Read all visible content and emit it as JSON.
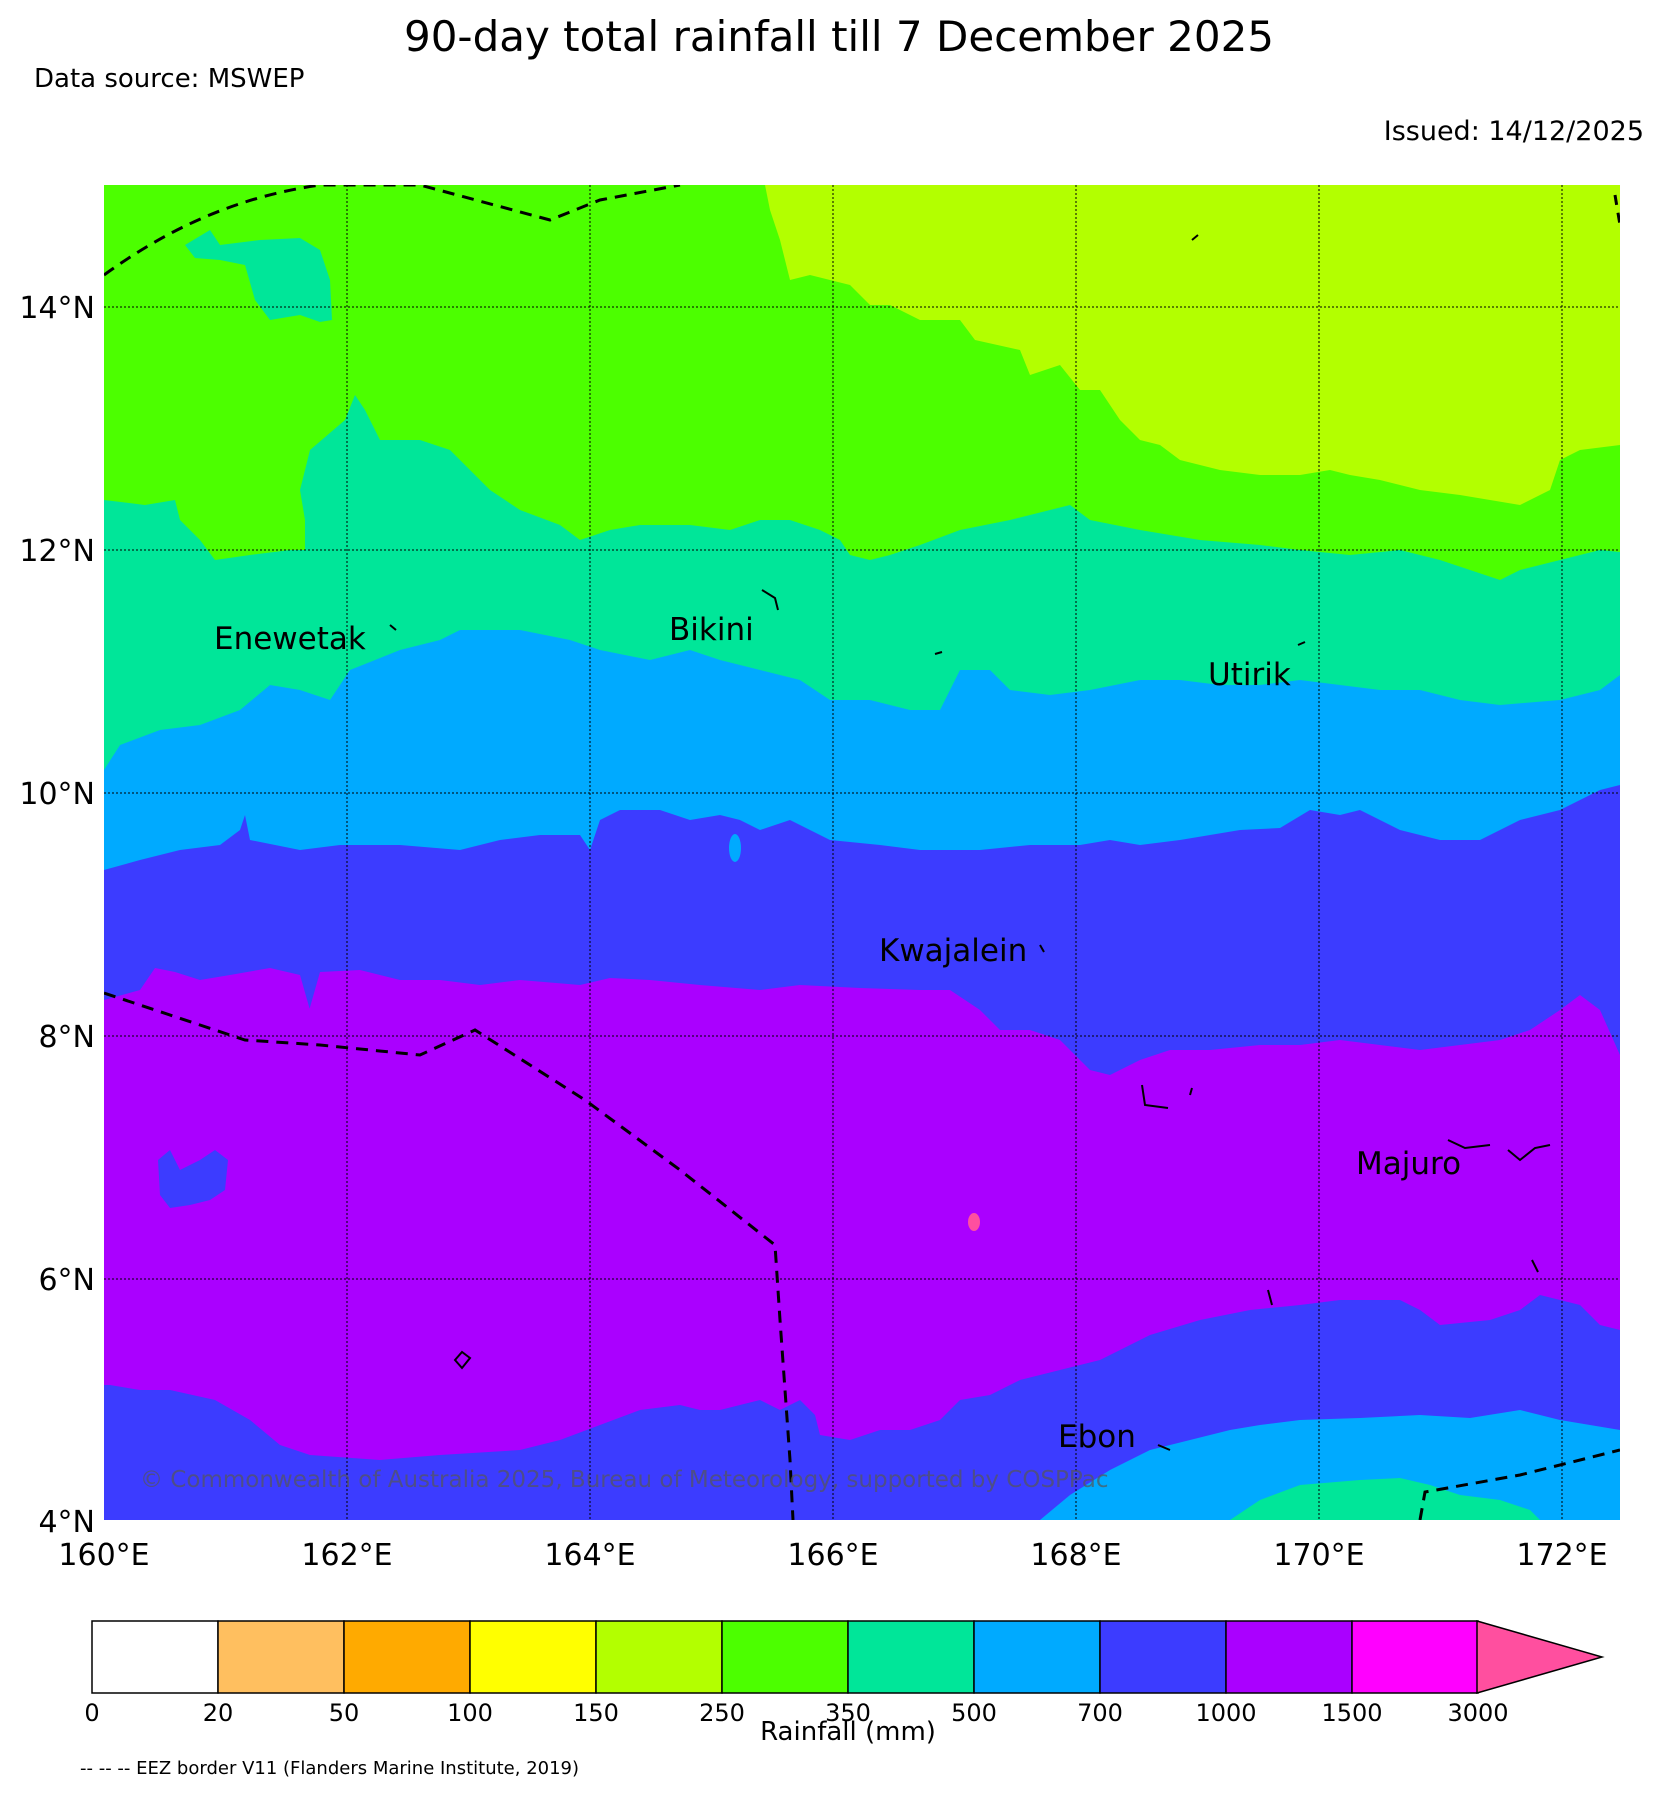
{
  "title": "90-day total rainfall till 7 December 2025",
  "data_source": "Data source: MSWEP",
  "issued": "Issued: 14/12/2025",
  "copyright": "© Commonwealth of Australia 2025, Bureau of Meteorology, supported by COSPPac",
  "eez_note": "-- -- -- EEZ border V11 (Flanders Marine Institute, 2019)",
  "map": {
    "lon_labels": [
      "160°E",
      "162°E",
      "164°E",
      "166°E",
      "168°E",
      "170°E",
      "172°E"
    ],
    "lat_labels": [
      "14°N",
      "12°N",
      "10°N",
      "8°N",
      "6°N",
      "4°N"
    ],
    "places": [
      "Enewetak",
      "Bikini",
      "Utirik",
      "Kwajalein",
      "Majuro",
      "Ebon"
    ]
  },
  "colorbar": {
    "title": "Rainfall (mm)",
    "ticks": [
      "0",
      "20",
      "50",
      "100",
      "150",
      "250",
      "350",
      "500",
      "700",
      "1000",
      "1500",
      "3000"
    ],
    "colors": [
      "#ffffff",
      "#ffbf5f",
      "#ffaa00",
      "#ffff00",
      "#b3ff00",
      "#4cff00",
      "#00e699",
      "#00aaff",
      "#3c3cff",
      "#aa00ff",
      "#ff00ff",
      "#ff4f9f"
    ]
  }
}
